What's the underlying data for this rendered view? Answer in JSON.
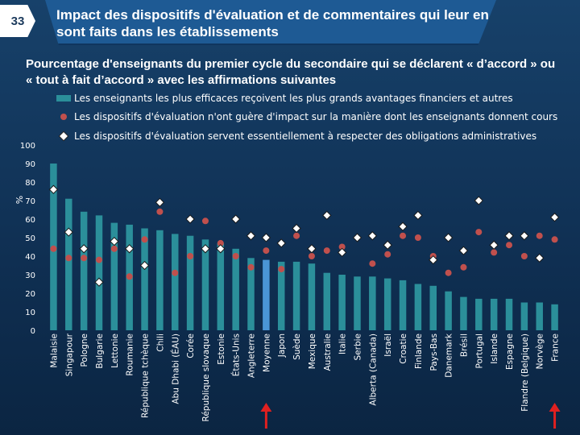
{
  "slide": {
    "number": "33"
  },
  "header": {
    "title": "Impact des dispositifs d'évaluation et de commentaires qui leur en sont faits dans les établissements"
  },
  "chart_data": {
    "type": "bar",
    "subtitle": "Pourcentage d'enseignants du premier cycle du secondaire qui se déclarent « d’accord » ou « tout à fait d’accord » avec les affirmations suivantes",
    "ylabel": "%",
    "ylim": [
      0,
      100
    ],
    "yticks": [
      0,
      10,
      20,
      30,
      40,
      50,
      60,
      70,
      80,
      90,
      100
    ],
    "categories": [
      "Malaisie",
      "Singapour",
      "Pologne",
      "Bulgarie",
      "Lettonie",
      "Roumanie",
      "République tchèque",
      "Chili",
      "Abu Dhabi (ÉAU)",
      "Corée",
      "République slovaque",
      "Estonie",
      "États-Unis",
      "Angleterre",
      "Moyenne",
      "Japon",
      "Suède",
      "Mexique",
      "Australie",
      "Italie",
      "Serbie",
      "Alberta (Canada)",
      "Israël",
      "Croatie",
      "Finlande",
      "Pays-Bas",
      "Danemark",
      "Brésil",
      "Portugal",
      "Islande",
      "Espagne",
      "Flandre (Belgique)",
      "Norvège",
      "France"
    ],
    "series": [
      {
        "name": "Les enseignants les plus efficaces reçoivent les plus grands avantages financiers et autres",
        "marker": "bar",
        "color": "#2b8f9a",
        "values": [
          90,
          71,
          64,
          62,
          58,
          57,
          55,
          54,
          52,
          51,
          49,
          47,
          44,
          39,
          38,
          37,
          37,
          36,
          31,
          30,
          29,
          29,
          28,
          27,
          25,
          24,
          21,
          18,
          17,
          17,
          17,
          15,
          15,
          14
        ]
      },
      {
        "name": "Les dispositifs d'évaluation n'ont guère d'impact sur la manière dont les enseignants donnent cours",
        "marker": "dot",
        "color": "#c0504d",
        "values": [
          44,
          39,
          39,
          38,
          44,
          29,
          49,
          64,
          31,
          40,
          59,
          47,
          40,
          34,
          43,
          33,
          51,
          40,
          43,
          45,
          null,
          36,
          41,
          51,
          50,
          40,
          31,
          34,
          53,
          42,
          46,
          40,
          51,
          49
        ]
      },
      {
        "name": "Les dispositifs d'évaluation servent essentiellement à respecter des obligations administratives",
        "marker": "diamond",
        "color": "#ffffff",
        "values": [
          76,
          53,
          44,
          26,
          48,
          44,
          35,
          69,
          null,
          60,
          44,
          44,
          60,
          51,
          50,
          47,
          55,
          44,
          62,
          42,
          50,
          51,
          46,
          56,
          62,
          38,
          50,
          43,
          70,
          46,
          51,
          51,
          39,
          61
        ]
      }
    ],
    "colors": {
      "bar_highlight": "#4a95d6",
      "background": "#0f2f52",
      "text": "#ffffff",
      "arrow": "#e02020"
    },
    "annotations": [
      {
        "type": "arrow-up",
        "category": "Moyenne",
        "color": "#e02020"
      },
      {
        "type": "arrow-up",
        "category": "France",
        "color": "#e02020"
      }
    ],
    "grid": false,
    "legend_position": "top"
  }
}
